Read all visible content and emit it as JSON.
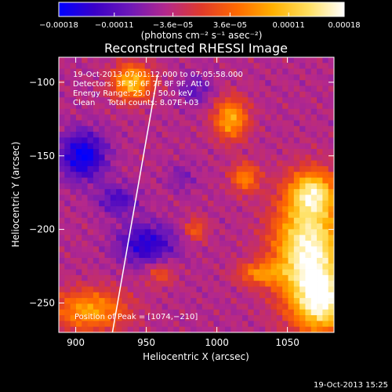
{
  "chart_data": {
    "type": "heatmap",
    "title": "Reconstructed RHESSI Image",
    "xlabel": "Heliocentric X (arcsec)",
    "ylabel": "Heliocentric Y (arcsec)",
    "xlim": [
      888,
      1083
    ],
    "ylim": [
      -270,
      -83
    ],
    "xticks": [
      900,
      950,
      1000,
      1050
    ],
    "yticks": [
      -100,
      -150,
      -200,
      -250
    ],
    "xtick_labels": [
      "900",
      "950",
      "1000",
      "1050"
    ],
    "ytick_labels": [
      "−100",
      "−150",
      "−200",
      "−250"
    ],
    "colorbar": {
      "range": [
        -0.00018,
        0.00018
      ],
      "ticks": [
        -0.00018,
        -0.00011,
        -3.6e-05,
        3.6e-05,
        0.00011,
        0.00018
      ],
      "tick_labels": [
        "−0.00018",
        "−0.00011",
        "−3.6e−05",
        "3.6e−05",
        "0.00011",
        "0.00018"
      ],
      "unit_label": "(photons cm⁻² s⁻¹ asec⁻²)",
      "colors": [
        "#0000ff",
        "#3a00c8",
        "#6e18b8",
        "#b4288c",
        "#e03a2a",
        "#ff6a00",
        "#ffb000",
        "#ffe060",
        "#ffffff"
      ]
    },
    "annotations": [
      "19-Oct-2013 07:01:12.000 to 07:05:58.000",
      "Detectors: 3F 5F 6F 7F 8F 9F, Att 0",
      "Energy Range: 25.0 - 50.0 keV",
      "Clean     Total counts: 8.07E+03"
    ],
    "peak_label": "Position of Peak = [1074,−210]",
    "peak_position": [
      1074,
      -210
    ],
    "limb_line": [
      [
        926,
        -270
      ],
      [
        958,
        -95
      ]
    ],
    "bright_regions": [
      {
        "x": 1065,
        "y": -215,
        "rx": 24,
        "ry": 38,
        "level": 0.00018
      },
      {
        "x": 1075,
        "y": -250,
        "rx": 18,
        "ry": 20,
        "level": 0.00012
      },
      {
        "x": 1068,
        "y": -175,
        "rx": 16,
        "ry": 14,
        "level": 0.0001
      },
      {
        "x": 1010,
        "y": -125,
        "rx": 12,
        "ry": 14,
        "level": 9e-05
      },
      {
        "x": 1020,
        "y": -165,
        "rx": 10,
        "ry": 10,
        "level": 6e-05
      },
      {
        "x": 940,
        "y": -100,
        "rx": 14,
        "ry": 12,
        "level": 0.00011
      },
      {
        "x": 910,
        "y": -255,
        "rx": 26,
        "ry": 14,
        "level": 8e-05
      },
      {
        "x": 1030,
        "y": -230,
        "rx": 16,
        "ry": 8,
        "level": 5e-05
      },
      {
        "x": 985,
        "y": -200,
        "rx": 8,
        "ry": 8,
        "level": 3e-05
      },
      {
        "x": 960,
        "y": -230,
        "rx": 10,
        "ry": 8,
        "level": 2e-05
      }
    ],
    "dark_regions": [
      {
        "x": 905,
        "y": -150,
        "rx": 16,
        "ry": 16,
        "level": -0.00018
      },
      {
        "x": 950,
        "y": -210,
        "rx": 20,
        "ry": 14,
        "level": -0.00015
      },
      {
        "x": 930,
        "y": -180,
        "rx": 14,
        "ry": 10,
        "level": -0.00012
      },
      {
        "x": 985,
        "y": -105,
        "rx": 12,
        "ry": 10,
        "level": -0.0001
      },
      {
        "x": 975,
        "y": -165,
        "rx": 10,
        "ry": 10,
        "level": -8e-05
      }
    ]
  },
  "footer": {
    "timestamp": "19-Oct-2013 15:25"
  }
}
